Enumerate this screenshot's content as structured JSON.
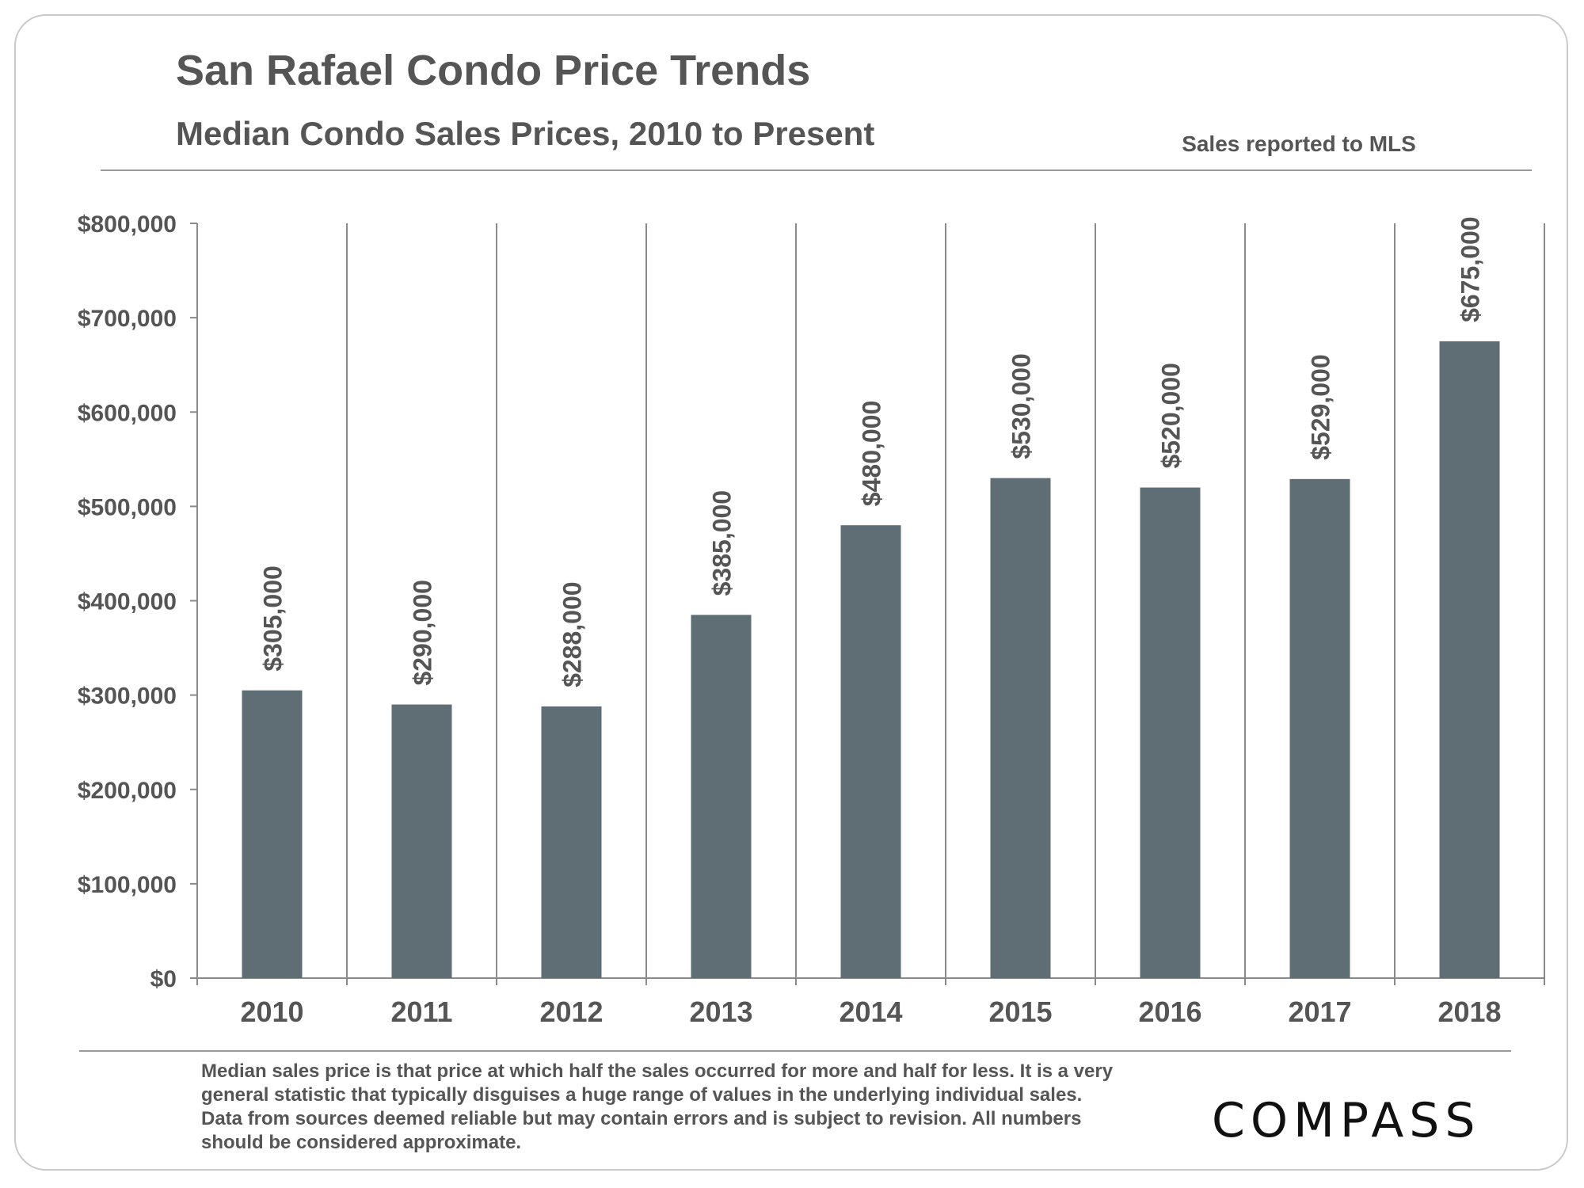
{
  "header": {
    "title": "San Rafael Condo Price Trends",
    "subtitle": "Median Condo Sales Prices, 2010 to Present",
    "source_note": "Sales reported to MLS"
  },
  "footer": {
    "footnote": "Median sales price is that price at which half the sales occurred for more and half for less. It is a very general statistic that typically disguises a huge range of values in the underlying individual sales. Data from sources deemed reliable but may contain errors and is subject to revision. All numbers should be considered approximate.",
    "logo_text": "COMPASS"
  },
  "colors": {
    "bar": "#5f6e75",
    "text": "#555555",
    "axis": "#8a8a8a"
  },
  "chart_data": {
    "type": "bar",
    "title": "San Rafael Condo Price Trends",
    "subtitle": "Median Condo Sales Prices, 2010 to Present",
    "xlabel": "",
    "ylabel": "",
    "categories": [
      "2010",
      "2011",
      "2012",
      "2013",
      "2014",
      "2015",
      "2016",
      "2017",
      "2018"
    ],
    "values": [
      305000,
      290000,
      288000,
      385000,
      480000,
      530000,
      520000,
      529000,
      675000
    ],
    "data_labels": [
      "$305,000",
      "$290,000",
      "$288,000",
      "$385,000",
      "$480,000",
      "$530,000",
      "$520,000",
      "$529,000",
      "$675,000"
    ],
    "ylim": [
      0,
      800000
    ],
    "yticks": [
      0,
      100000,
      200000,
      300000,
      400000,
      500000,
      600000,
      700000,
      800000
    ],
    "ytick_labels": [
      "$0",
      "$100,000",
      "$200,000",
      "$300,000",
      "$400,000",
      "$500,000",
      "$600,000",
      "$700,000",
      "$800,000"
    ],
    "grid": "vertical separators",
    "legend": "none"
  }
}
